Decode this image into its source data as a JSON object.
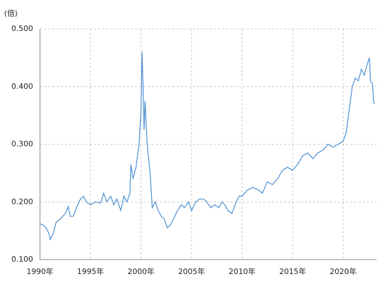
{
  "chart_data": {
    "type": "line",
    "y_unit_label": "(倍)",
    "x": [
      1990.0,
      1990.3,
      1990.6,
      1990.9,
      1991.0,
      1991.3,
      1991.6,
      1992.0,
      1992.5,
      1992.8,
      1993.0,
      1993.3,
      1993.6,
      1994.0,
      1994.3,
      1994.6,
      1995.0,
      1995.5,
      1996.0,
      1996.3,
      1996.6,
      1997.0,
      1997.3,
      1997.6,
      1998.0,
      1998.3,
      1998.6,
      1998.9,
      1999.0,
      1999.2,
      1999.5,
      1999.8,
      2000.0,
      2000.1,
      2000.2,
      2000.3,
      2000.4,
      2000.6,
      2000.9,
      2001.1,
      2001.4,
      2001.7,
      2002.0,
      2002.3,
      2002.6,
      2002.9,
      2003.2,
      2003.6,
      2004.0,
      2004.3,
      2004.7,
      2005.0,
      2005.4,
      2005.8,
      2006.2,
      2006.5,
      2006.9,
      2007.3,
      2007.7,
      2008.0,
      2008.3,
      2008.6,
      2009.0,
      2009.3,
      2009.7,
      2010.0,
      2010.5,
      2011.0,
      2011.5,
      2012.0,
      2012.5,
      2013.0,
      2013.5,
      2014.0,
      2014.5,
      2015.0,
      2015.5,
      2016.0,
      2016.5,
      2017.0,
      2017.5,
      2018.0,
      2018.5,
      2019.0,
      2019.5,
      2020.0,
      2020.3,
      2020.6,
      2020.9,
      2021.2,
      2021.5,
      2021.8,
      2022.1,
      2022.4,
      2022.6,
      2022.7,
      2022.9,
      2023.0,
      2023.1
    ],
    "series": [
      {
        "color": "#4a8fd0",
        "values": [
          0.162,
          0.16,
          0.155,
          0.145,
          0.135,
          0.145,
          0.165,
          0.17,
          0.18,
          0.192,
          0.175,
          0.175,
          0.19,
          0.205,
          0.21,
          0.2,
          0.195,
          0.2,
          0.198,
          0.215,
          0.2,
          0.21,
          0.195,
          0.205,
          0.185,
          0.21,
          0.2,
          0.215,
          0.265,
          0.24,
          0.26,
          0.3,
          0.36,
          0.46,
          0.4,
          0.325,
          0.375,
          0.3,
          0.25,
          0.19,
          0.2,
          0.185,
          0.175,
          0.17,
          0.155,
          0.16,
          0.17,
          0.185,
          0.195,
          0.19,
          0.2,
          0.185,
          0.2,
          0.205,
          0.205,
          0.2,
          0.19,
          0.195,
          0.19,
          0.2,
          0.195,
          0.185,
          0.18,
          0.195,
          0.21,
          0.21,
          0.22,
          0.225,
          0.222,
          0.215,
          0.235,
          0.23,
          0.24,
          0.255,
          0.26,
          0.255,
          0.265,
          0.28,
          0.285,
          0.275,
          0.285,
          0.29,
          0.3,
          0.295,
          0.3,
          0.305,
          0.32,
          0.36,
          0.4,
          0.415,
          0.41,
          0.43,
          0.42,
          0.44,
          0.45,
          0.41,
          0.405,
          0.375,
          0.37
        ]
      }
    ],
    "xlim": [
      1990,
      2023.3
    ],
    "ylim": [
      0.1,
      0.5
    ],
    "xticks": [
      {
        "value": 1990,
        "label": "1990年"
      },
      {
        "value": 1995,
        "label": "1995年"
      },
      {
        "value": 2000,
        "label": "2000年"
      },
      {
        "value": 2005,
        "label": "2005年"
      },
      {
        "value": 2010,
        "label": "2010年"
      },
      {
        "value": 2015,
        "label": "2015年"
      },
      {
        "value": 2020,
        "label": "2020年"
      }
    ],
    "yticks": [
      {
        "value": 0.1,
        "label": "0.100"
      },
      {
        "value": 0.2,
        "label": "0.200"
      },
      {
        "value": 0.3,
        "label": "0.300"
      },
      {
        "value": 0.4,
        "label": "0.400"
      },
      {
        "value": 0.5,
        "label": "0.500"
      }
    ],
    "grid": true
  }
}
